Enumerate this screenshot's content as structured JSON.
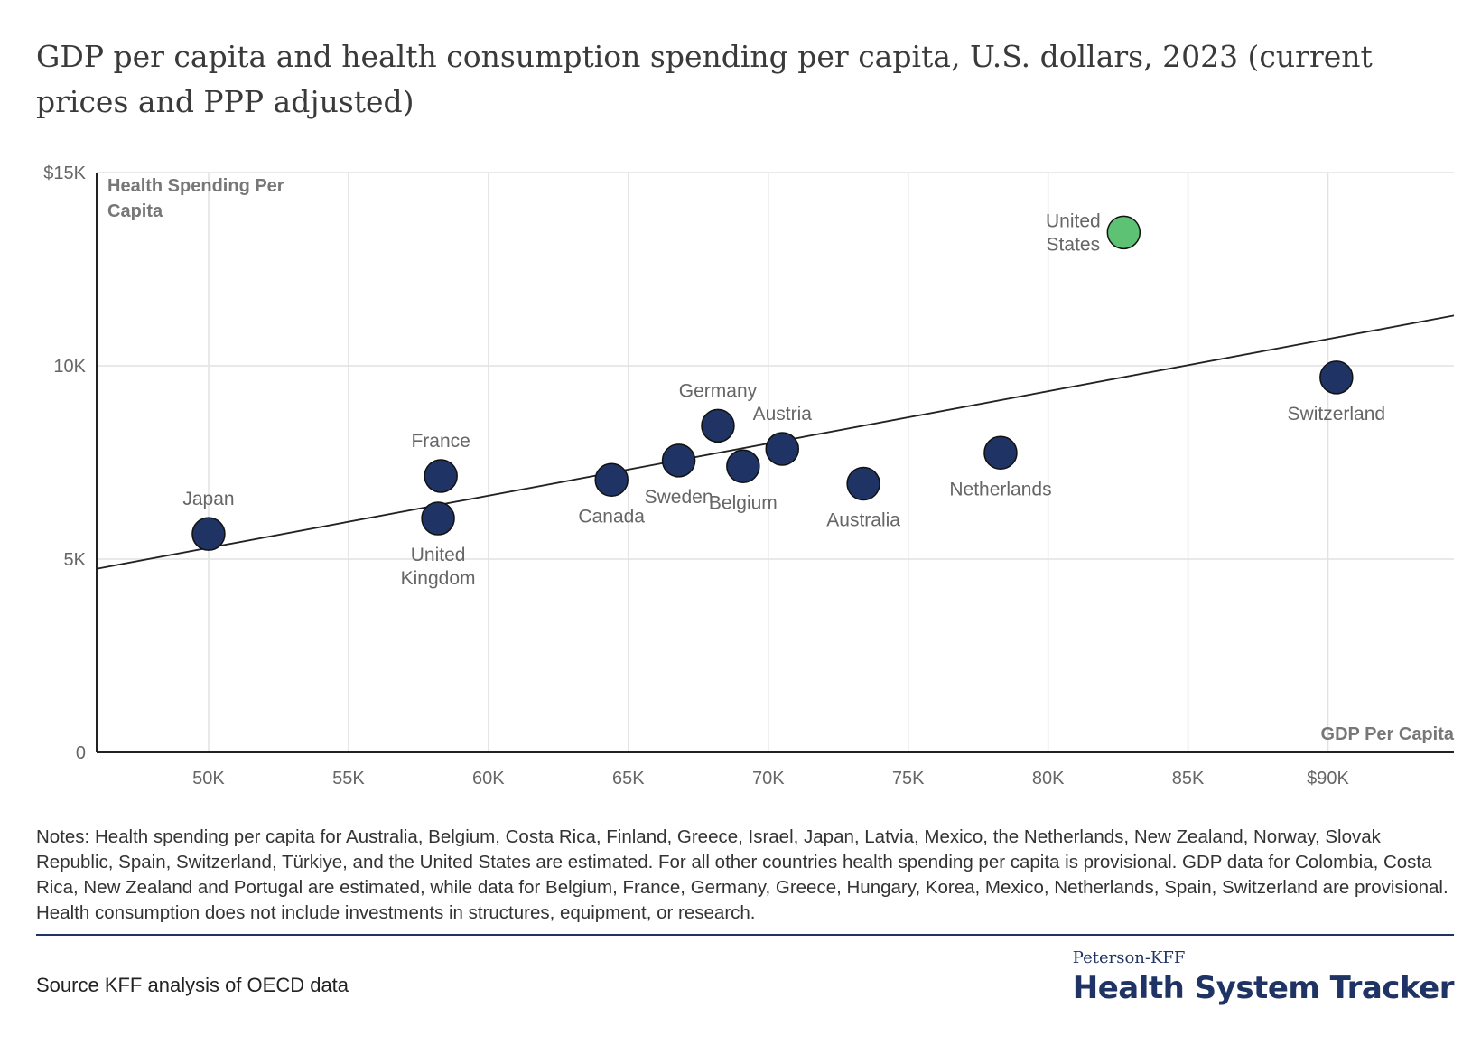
{
  "header": {
    "title": "GDP per capita and health consumption spending per capita, U.S. dollars, 2023 (current prices and PPP adjusted)"
  },
  "chart_data": {
    "type": "scatter",
    "title": "GDP per capita and health consumption spending per capita, U.S. dollars, 2023 (current prices and PPP adjusted)",
    "xlabel": "GDP Per Capita",
    "ylabel_lines": [
      "Health Spending Per",
      "Capita"
    ],
    "xlim": [
      46000,
      94500
    ],
    "ylim": [
      0,
      15000
    ],
    "x_ticks": [
      50000,
      55000,
      60000,
      65000,
      70000,
      75000,
      80000,
      85000,
      90000
    ],
    "x_tick_labels": [
      "50K",
      "55K",
      "60K",
      "65K",
      "70K",
      "75K",
      "80K",
      "85K",
      "$90K"
    ],
    "y_ticks": [
      0,
      5000,
      10000,
      15000
    ],
    "y_tick_labels": [
      "0",
      "5K",
      "10K",
      "$15K"
    ],
    "grid": true,
    "colors": {
      "default": "#1f3464",
      "highlight": "#5ec275",
      "grid": "#e2e2e2",
      "trend": "#222222"
    },
    "trendline": {
      "x": [
        46000,
        94500
      ],
      "y": [
        4750,
        11300
      ]
    },
    "points": [
      {
        "name": "Japan",
        "label_lines": [
          "Japan"
        ],
        "x": 50000,
        "y": 5650,
        "label_pos": "above",
        "highlight": false
      },
      {
        "name": "France",
        "label_lines": [
          "France"
        ],
        "x": 58300,
        "y": 7150,
        "label_pos": "above",
        "highlight": false
      },
      {
        "name": "United Kingdom",
        "label_lines": [
          "United",
          "Kingdom"
        ],
        "x": 58200,
        "y": 6050,
        "label_pos": "below",
        "highlight": false
      },
      {
        "name": "Canada",
        "label_lines": [
          "Canada"
        ],
        "x": 64400,
        "y": 7050,
        "label_pos": "below",
        "highlight": false
      },
      {
        "name": "Sweden",
        "label_lines": [
          "Sweden"
        ],
        "x": 66800,
        "y": 7550,
        "label_pos": "below",
        "highlight": false
      },
      {
        "name": "Germany",
        "label_lines": [
          "Germany"
        ],
        "x": 68200,
        "y": 8450,
        "label_pos": "above",
        "highlight": false
      },
      {
        "name": "Belgium",
        "label_lines": [
          "Belgium"
        ],
        "x": 69100,
        "y": 7400,
        "label_pos": "below",
        "highlight": false
      },
      {
        "name": "Austria",
        "label_lines": [
          "Austria"
        ],
        "x": 70500,
        "y": 7850,
        "label_pos": "above",
        "highlight": false
      },
      {
        "name": "Australia",
        "label_lines": [
          "Australia"
        ],
        "x": 73400,
        "y": 6950,
        "label_pos": "below",
        "highlight": false
      },
      {
        "name": "Netherlands",
        "label_lines": [
          "Netherlands"
        ],
        "x": 78300,
        "y": 7750,
        "label_pos": "below",
        "highlight": false
      },
      {
        "name": "United States",
        "label_lines": [
          "United",
          "States"
        ],
        "x": 82700,
        "y": 13450,
        "label_pos": "left",
        "highlight": true
      },
      {
        "name": "Switzerland",
        "label_lines": [
          "Switzerland"
        ],
        "x": 90300,
        "y": 9700,
        "label_pos": "below",
        "highlight": false
      }
    ]
  },
  "footer": {
    "notes": "Notes: Health spending per capita for Australia, Belgium, Costa Rica, Finland, Greece, Israel, Japan, Latvia, Mexico, the Netherlands, New Zealand, Norway, Slovak Republic, Spain, Switzerland, Türkiye, and the United States are estimated. For all other countries health spending per capita is provisional. GDP data for Colombia, Costa Rica, New Zealand and Portugal are estimated, while data for Belgium, France, Germany, Greece, Hungary, Korea, Mexico, Netherlands, Spain, Switzerland are provisional. Health consumption does not include investments in structures, equipment, or research.",
    "source": "Source KFF analysis of OECD data",
    "brand_top": "Peterson-KFF",
    "brand_main": "Health System Tracker"
  }
}
